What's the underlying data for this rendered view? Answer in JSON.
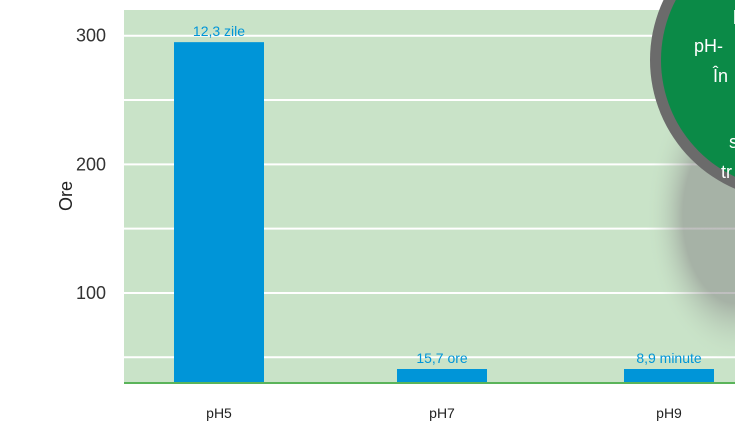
{
  "chart_data": {
    "type": "bar",
    "ylabel": "Ore",
    "categories": [
      "pH5",
      "pH7",
      "pH9"
    ],
    "values": [
      295,
      15.7,
      0.15
    ],
    "data_labels": [
      "12,3 zile",
      "15,7 ore",
      "8,9 minute"
    ],
    "yticks": [
      100,
      200,
      300
    ],
    "ylim": [
      30,
      320
    ],
    "grid": true,
    "colors": {
      "bar": "#0095d8",
      "plot_bg": "#c9e3c8",
      "grid": "#ffffff",
      "axis": "#5ab45a",
      "data_label": "#0095d8",
      "badge_fill": "#0b8a47",
      "badge_ring": "#6b6b6b"
    }
  },
  "badge": {
    "lines": [
      "p",
      "pH-",
      "În",
      "",
      "s",
      "tr"
    ]
  }
}
